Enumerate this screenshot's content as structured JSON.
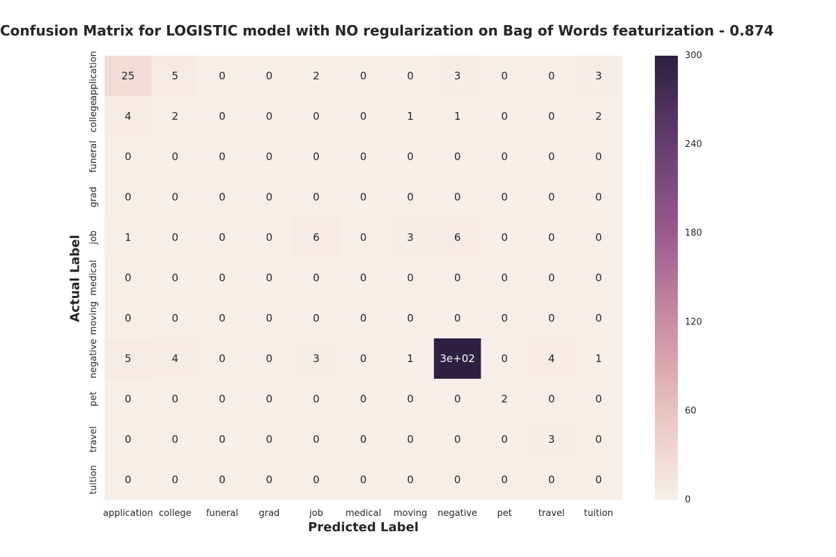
{
  "chart_data": {
    "type": "heatmap",
    "title": "Confusion Matrix for LOGISTIC model with NO regularization on Bag of Words featurization - 0.874",
    "xlabel": "Predicted Label",
    "ylabel": "Actual Label",
    "x_categories": [
      "application",
      "college",
      "funeral",
      "grad",
      "job",
      "medical",
      "moving",
      "negative",
      "pet",
      "travel",
      "tuition"
    ],
    "y_categories": [
      "application",
      "college",
      "funeral",
      "grad",
      "job",
      "medical",
      "moving",
      "negative",
      "pet",
      "travel",
      "tuition"
    ],
    "values": [
      [
        25,
        5,
        0,
        0,
        2,
        0,
        0,
        3,
        0,
        0,
        3
      ],
      [
        4,
        2,
        0,
        0,
        0,
        0,
        1,
        1,
        0,
        0,
        2
      ],
      [
        0,
        0,
        0,
        0,
        0,
        0,
        0,
        0,
        0,
        0,
        0
      ],
      [
        0,
        0,
        0,
        0,
        0,
        0,
        0,
        0,
        0,
        0,
        0
      ],
      [
        1,
        0,
        0,
        0,
        6,
        0,
        3,
        6,
        0,
        0,
        0
      ],
      [
        0,
        0,
        0,
        0,
        0,
        0,
        0,
        0,
        0,
        0,
        0
      ],
      [
        0,
        0,
        0,
        0,
        0,
        0,
        0,
        0,
        0,
        0,
        0
      ],
      [
        5,
        4,
        0,
        0,
        3,
        0,
        1,
        300,
        0,
        4,
        1
      ],
      [
        0,
        0,
        0,
        0,
        0,
        0,
        0,
        0,
        2,
        0,
        0
      ],
      [
        0,
        0,
        0,
        0,
        0,
        0,
        0,
        0,
        0,
        3,
        0
      ],
      [
        0,
        0,
        0,
        0,
        0,
        0,
        0,
        0,
        0,
        0,
        0
      ]
    ],
    "cell_labels": [
      [
        "25",
        "5",
        "0",
        "0",
        "2",
        "0",
        "0",
        "3",
        "0",
        "0",
        "3"
      ],
      [
        "4",
        "2",
        "0",
        "0",
        "0",
        "0",
        "1",
        "1",
        "0",
        "0",
        "2"
      ],
      [
        "0",
        "0",
        "0",
        "0",
        "0",
        "0",
        "0",
        "0",
        "0",
        "0",
        "0"
      ],
      [
        "0",
        "0",
        "0",
        "0",
        "0",
        "0",
        "0",
        "0",
        "0",
        "0",
        "0"
      ],
      [
        "1",
        "0",
        "0",
        "0",
        "6",
        "0",
        "3",
        "6",
        "0",
        "0",
        "0"
      ],
      [
        "0",
        "0",
        "0",
        "0",
        "0",
        "0",
        "0",
        "0",
        "0",
        "0",
        "0"
      ],
      [
        "0",
        "0",
        "0",
        "0",
        "0",
        "0",
        "0",
        "0",
        "0",
        "0",
        "0"
      ],
      [
        "5",
        "4",
        "0",
        "0",
        "3",
        "0",
        "1",
        "3e+02",
        "0",
        "4",
        "1"
      ],
      [
        "0",
        "0",
        "0",
        "0",
        "0",
        "0",
        "0",
        "0",
        "2",
        "0",
        "0"
      ],
      [
        "0",
        "0",
        "0",
        "0",
        "0",
        "0",
        "0",
        "0",
        "0",
        "3",
        "0"
      ],
      [
        "0",
        "0",
        "0",
        "0",
        "0",
        "0",
        "0",
        "0",
        "0",
        "0",
        "0"
      ]
    ],
    "colorbar": {
      "range": [
        0,
        300
      ],
      "ticks": [
        0,
        60,
        120,
        180,
        240,
        300
      ],
      "tick_labels": [
        "0",
        "60",
        "120",
        "180",
        "240",
        "300"
      ],
      "colors": [
        "#f7eeea",
        "#e9c3be",
        "#c98da3",
        "#9a5b8e",
        "#653e6f",
        "#2d1f3f"
      ]
    },
    "grid": false,
    "colorbar_position": "right"
  }
}
